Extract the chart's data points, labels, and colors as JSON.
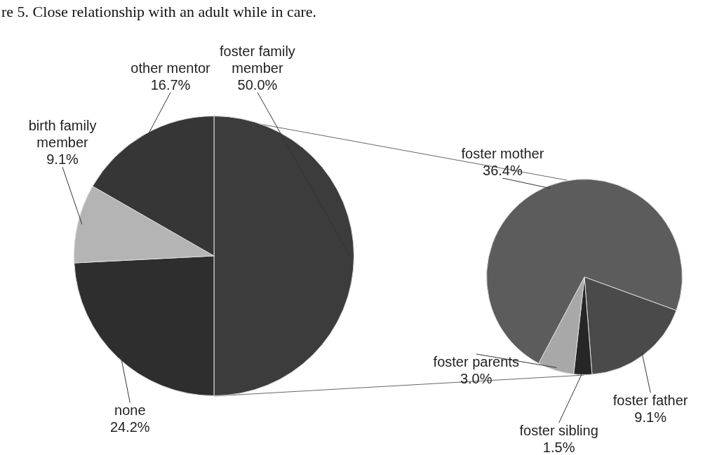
{
  "chart_data": [
    {
      "type": "pie",
      "title": "re 5. Close relationship with an adult while in care.",
      "categories": [
        "foster family member",
        "none",
        "birth family member",
        "other mentor"
      ],
      "values": [
        50.0,
        24.2,
        9.1,
        16.7
      ],
      "value_labels": [
        "50.0%",
        "24.2%",
        "9.1%",
        "16.7%"
      ],
      "colors": [
        "#3c3c3c",
        "#2e2e2e",
        "#b4b4b4",
        "#363636"
      ]
    },
    {
      "type": "pie",
      "categories": [
        "foster father",
        "foster sibling",
        "foster parents",
        "foster mother"
      ],
      "values": [
        9.1,
        1.5,
        3.0,
        36.4
      ],
      "value_labels": [
        "9.1%",
        "1.5%",
        "3.0%",
        "36.4%"
      ],
      "colors": [
        "#4a4a4a",
        "#262626",
        "#a8a8a8",
        "#5c5c5c"
      ]
    }
  ]
}
